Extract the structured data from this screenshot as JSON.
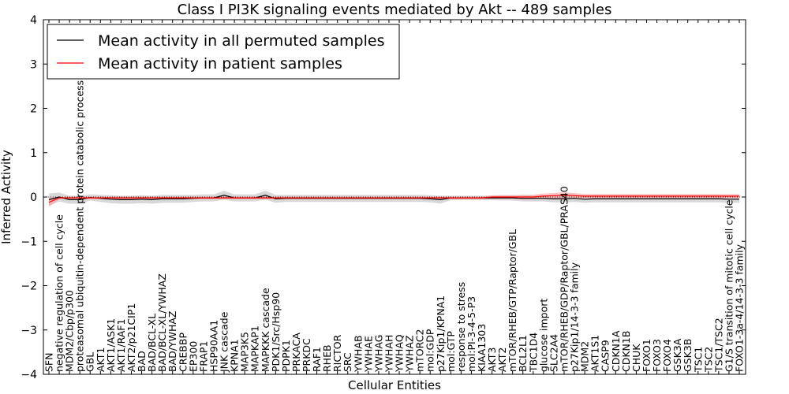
{
  "chart_data": {
    "type": "line",
    "title": "Class I PI3K signaling events mediated by Akt -- 489 samples",
    "xlabel": "Cellular Entities",
    "ylabel": "Inferred Activity",
    "ylim": [
      -4,
      4
    ],
    "yticks": [
      "4",
      "3",
      "2",
      "1",
      "0",
      "−1",
      "−2",
      "−3",
      "−4"
    ],
    "grid": false,
    "legend_position": "top-left",
    "colors": {
      "permuted": "#000000",
      "patient": "#ff0000",
      "permuted_band": "#c8c8c8",
      "patient_band": "#ff9999"
    },
    "categories": [
      "SFN",
      "negative regulation of cell cycle",
      "MDM2/Cbp/p300",
      "proteasomal ubiquitin-dependent protein catabolic process",
      "GBL",
      "AKT1",
      "AKT1/ASK1",
      "AKT1/RAF1",
      "AKT2/p21CIP1",
      "BAD",
      "BAD/BCL-XL",
      "BAD/BCL-XL/YWHAZ",
      "BAD/YWHAZ",
      "CREBBP",
      "EP300",
      "FRAP1",
      "HSP90AA1",
      "JNK cascade",
      "KPNA1",
      "MAP3K5",
      "MAPKAP1",
      "MAPKKK cascade",
      "PDK1/Src/Hsp90",
      "PDPK1",
      "PRKACA",
      "PRKDC",
      "RAF1",
      "RHEB",
      "RICTOR",
      "SRC",
      "YWHAB",
      "YWHAE",
      "YWHAG",
      "YWHAH",
      "YWHAQ",
      "YWHAZ",
      "mTORC2",
      "mol:GDP",
      "p27Kip1/KPNA1",
      "mol:GTP",
      "response to stress",
      "mol:PI-3-4-5-P3",
      "KIAA1303",
      "AKT3",
      "AKT2",
      "mTOR/RHEB/GTP/Raptor/GBL",
      "BCL2L1",
      "TBC1D4",
      "glucose import",
      "SLC2A4",
      "mTOR/RHEB/GDP/Raptor/GBL/PRAS40",
      "p27Kip1/14-3-3 family",
      "MDM2",
      "AKT1S1",
      "CASP9",
      "CDKN1A",
      "CDKN1B",
      "CHUK",
      "FOXO1",
      "FOXO3",
      "FOXO4",
      "GSK3A",
      "GSK3B",
      "TSC1",
      "TSC2",
      "TSC1/TSC2",
      "G1/S transition of mitotic cell cycle",
      "FOXO1-3a-4/14-3-3 family"
    ],
    "series": [
      {
        "name": "Mean activity in all permuted samples",
        "color": "#000000",
        "values": [
          -0.06,
          0.0,
          -0.06,
          -0.06,
          -0.01,
          -0.03,
          -0.05,
          -0.06,
          -0.06,
          -0.05,
          -0.06,
          -0.04,
          -0.04,
          -0.04,
          -0.03,
          -0.02,
          -0.02,
          0.04,
          -0.02,
          -0.02,
          -0.02,
          0.04,
          -0.04,
          -0.03,
          -0.03,
          -0.03,
          -0.03,
          -0.03,
          -0.03,
          -0.03,
          -0.03,
          -0.03,
          -0.03,
          -0.03,
          -0.03,
          -0.03,
          -0.03,
          -0.04,
          -0.06,
          -0.02,
          -0.02,
          -0.02,
          -0.02,
          -0.02,
          -0.02,
          -0.02,
          -0.03,
          -0.03,
          -0.03,
          -0.04,
          -0.04,
          -0.03,
          -0.05,
          -0.04,
          -0.04,
          -0.04,
          -0.04,
          -0.04,
          -0.04,
          -0.04,
          -0.04,
          -0.04,
          -0.04,
          -0.04,
          -0.04,
          -0.04,
          -0.05,
          -0.05
        ],
        "band": [
          0.14,
          0.1,
          0.09,
          0.09,
          0.07,
          0.08,
          0.09,
          0.09,
          0.09,
          0.09,
          0.09,
          0.09,
          0.09,
          0.09,
          0.08,
          0.08,
          0.08,
          0.1,
          0.08,
          0.08,
          0.08,
          0.1,
          0.09,
          0.08,
          0.08,
          0.08,
          0.08,
          0.08,
          0.08,
          0.08,
          0.08,
          0.08,
          0.08,
          0.08,
          0.08,
          0.08,
          0.08,
          0.08,
          0.09,
          0.05,
          0.05,
          0.05,
          0.05,
          0.05,
          0.06,
          0.06,
          0.07,
          0.07,
          0.07,
          0.08,
          0.08,
          0.08,
          0.08,
          0.08,
          0.08,
          0.08,
          0.08,
          0.08,
          0.08,
          0.08,
          0.08,
          0.08,
          0.08,
          0.08,
          0.08,
          0.08,
          0.08,
          0.08
        ]
      },
      {
        "name": "Mean activity in patient samples",
        "color": "#ff0000",
        "values": [
          -0.12,
          -0.02,
          -0.02,
          -0.02,
          -0.02,
          -0.02,
          -0.02,
          -0.02,
          -0.02,
          -0.02,
          -0.02,
          -0.02,
          -0.02,
          -0.02,
          -0.02,
          -0.02,
          -0.02,
          -0.02,
          -0.02,
          -0.02,
          -0.02,
          -0.02,
          -0.02,
          -0.02,
          -0.02,
          -0.02,
          -0.02,
          -0.02,
          -0.02,
          -0.02,
          -0.02,
          -0.02,
          -0.02,
          -0.02,
          -0.02,
          -0.02,
          -0.02,
          -0.02,
          -0.02,
          -0.02,
          -0.02,
          -0.02,
          -0.02,
          0.0,
          0.0,
          0.0,
          0.0,
          0.0,
          0.02,
          0.03,
          0.04,
          0.03,
          0.02,
          0.02,
          0.02,
          0.02,
          0.02,
          0.02,
          0.02,
          0.02,
          0.02,
          0.02,
          0.02,
          0.02,
          0.02,
          0.02,
          0.02,
          0.02
        ],
        "band": [
          0.1,
          0.03,
          0.03,
          0.03,
          0.03,
          0.03,
          0.03,
          0.03,
          0.03,
          0.03,
          0.03,
          0.03,
          0.03,
          0.03,
          0.03,
          0.03,
          0.03,
          0.03,
          0.03,
          0.03,
          0.03,
          0.03,
          0.03,
          0.03,
          0.03,
          0.03,
          0.03,
          0.03,
          0.03,
          0.03,
          0.03,
          0.03,
          0.03,
          0.03,
          0.03,
          0.03,
          0.03,
          0.03,
          0.03,
          0.03,
          0.03,
          0.03,
          0.03,
          0.04,
          0.04,
          0.04,
          0.05,
          0.05,
          0.06,
          0.06,
          0.07,
          0.06,
          0.05,
          0.05,
          0.05,
          0.05,
          0.05,
          0.05,
          0.05,
          0.05,
          0.05,
          0.05,
          0.05,
          0.05,
          0.05,
          0.05,
          0.05,
          0.05
        ]
      }
    ]
  }
}
